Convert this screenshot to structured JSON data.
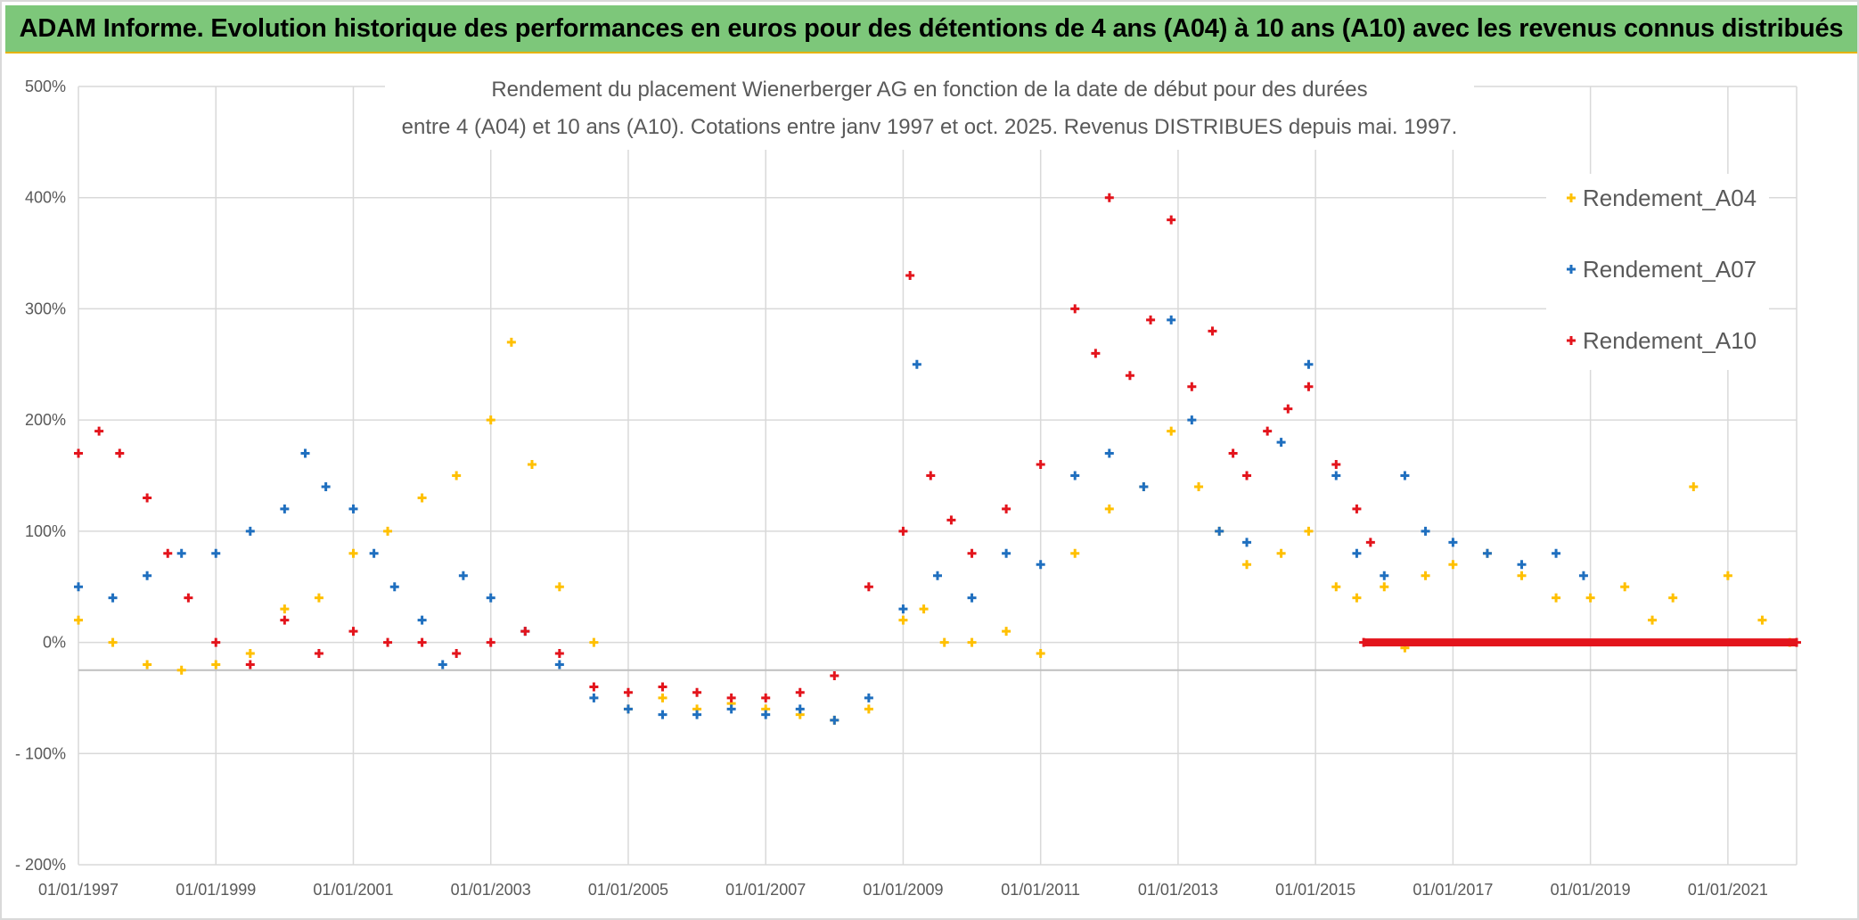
{
  "banner": {
    "text": "ADAM Informe. Evolution historique des performances en euros pour des détentions de 4 ans (A04) à 10 ans (A10) avec les revenus connus distribués"
  },
  "chart_data": {
    "type": "scatter",
    "title_line1": "Rendement du placement Wienerberger AG en fonction de la date de début pour des durées",
    "title_line2": "entre 4 (A04) et 10 ans (A10). Cotations entre janv 1997 et oct. 2025. Revenus DISTRIBUES depuis mai. 1997.",
    "x_unit": "year",
    "xlim": [
      1997.0,
      2022.0
    ],
    "ylim": [
      -200,
      500
    ],
    "y_ticks": [
      500,
      400,
      300,
      200,
      100,
      0,
      -100,
      -200
    ],
    "y_tick_labels": [
      "500%",
      "400%",
      "300%",
      "200%",
      "100%",
      "0%",
      "- 100%",
      "- 200%"
    ],
    "x_ticks": [
      1997,
      1999,
      2001,
      2003,
      2005,
      2007,
      2009,
      2011,
      2013,
      2015,
      2017,
      2019,
      2021
    ],
    "x_tick_labels": [
      "01/01/1997",
      "01/01/1999",
      "01/01/2001",
      "01/01/2003",
      "01/01/2005",
      "01/01/2007",
      "01/01/2009",
      "01/01/2011",
      "01/01/2013",
      "01/01/2015",
      "01/01/2017",
      "01/01/2019",
      "01/01/2021"
    ],
    "reference_line_y": -25,
    "grid": true,
    "legend_position": "right",
    "series": [
      {
        "name": "Rendement_A04",
        "color": "#ffc000",
        "x": [
          1997.0,
          1997.5,
          1998.0,
          1998.5,
          1999.0,
          1999.5,
          2000.0,
          2000.5,
          2001.0,
          2001.5,
          2002.0,
          2002.5,
          2003.0,
          2003.3,
          2003.6,
          2004.0,
          2004.5,
          2005.0,
          2005.5,
          2006.0,
          2006.5,
          2007.0,
          2007.5,
          2008.0,
          2008.5,
          2009.0,
          2009.3,
          2009.6,
          2010.0,
          2010.5,
          2011.0,
          2011.5,
          2012.0,
          2012.5,
          2012.9,
          2013.3,
          2013.6,
          2014.0,
          2014.5,
          2014.9,
          2015.3,
          2015.6,
          2016.0,
          2016.3,
          2016.6,
          2017.0,
          2017.5,
          2018.0,
          2018.5,
          2019.0,
          2019.5,
          2019.9,
          2020.2,
          2020.5,
          2021.0,
          2021.5,
          2021.9
        ],
        "y": [
          20,
          0,
          -20,
          -25,
          -20,
          -10,
          30,
          40,
          80,
          100,
          130,
          150,
          200,
          270,
          160,
          50,
          0,
          -60,
          -50,
          -60,
          -55,
          -60,
          -65,
          -70,
          -60,
          20,
          30,
          0,
          0,
          10,
          -10,
          80,
          120,
          140,
          190,
          140,
          100,
          70,
          80,
          100,
          50,
          40,
          50,
          -5,
          60,
          70,
          80,
          60,
          40,
          40,
          50,
          20,
          40,
          140,
          60,
          20,
          0
        ]
      },
      {
        "name": "Rendement_A07",
        "color": "#1f6fbf",
        "x": [
          1997.0,
          1997.5,
          1998.0,
          1998.5,
          1999.0,
          1999.5,
          2000.0,
          2000.3,
          2000.6,
          2001.0,
          2001.3,
          2001.6,
          2002.0,
          2002.3,
          2002.6,
          2003.0,
          2003.5,
          2004.0,
          2004.5,
          2005.0,
          2005.5,
          2006.0,
          2006.5,
          2007.0,
          2007.5,
          2008.0,
          2008.5,
          2009.0,
          2009.2,
          2009.5,
          2010.0,
          2010.5,
          2011.0,
          2011.5,
          2012.0,
          2012.5,
          2012.9,
          2013.2,
          2013.6,
          2014.0,
          2014.5,
          2014.9,
          2015.3,
          2015.6,
          2016.0,
          2016.3,
          2016.6,
          2017.0,
          2017.5,
          2018.0,
          2018.5,
          2018.9
        ],
        "y": [
          50,
          40,
          60,
          80,
          80,
          100,
          120,
          170,
          140,
          120,
          80,
          50,
          20,
          -20,
          60,
          40,
          10,
          -20,
          -50,
          -60,
          -65,
          -65,
          -60,
          -65,
          -60,
          -70,
          -50,
          30,
          250,
          60,
          40,
          80,
          70,
          150,
          170,
          140,
          290,
          200,
          100,
          90,
          180,
          250,
          150,
          80,
          60,
          150,
          100,
          90,
          80,
          70,
          80,
          60
        ]
      },
      {
        "name": "Rendement_A10",
        "color": "#e3141c",
        "x": [
          1997.0,
          1997.3,
          1997.6,
          1998.0,
          1998.3,
          1998.6,
          1999.0,
          1999.5,
          2000.0,
          2000.5,
          2001.0,
          2001.5,
          2002.0,
          2002.5,
          2003.0,
          2003.5,
          2004.0,
          2004.5,
          2005.0,
          2005.5,
          2006.0,
          2006.5,
          2007.0,
          2007.5,
          2008.0,
          2008.5,
          2009.0,
          2009.1,
          2009.4,
          2009.7,
          2010.0,
          2010.5,
          2011.0,
          2011.5,
          2011.8,
          2012.0,
          2012.3,
          2012.6,
          2012.9,
          2013.2,
          2013.5,
          2013.8,
          2014.0,
          2014.3,
          2014.6,
          2014.9,
          2015.3,
          2015.6,
          2015.8
        ],
        "y": [
          170,
          190,
          170,
          130,
          80,
          40,
          0,
          -20,
          20,
          -10,
          10,
          0,
          0,
          -10,
          0,
          10,
          -10,
          -40,
          -45,
          -40,
          -45,
          -50,
          -50,
          -45,
          -30,
          50,
          100,
          330,
          150,
          110,
          80,
          120,
          160,
          300,
          260,
          400,
          240,
          290,
          380,
          230,
          280,
          170,
          150,
          190,
          210,
          230,
          160,
          120,
          90
        ]
      },
      {
        "name": "",
        "color": "#e3141c",
        "x": [
          2015.7,
          2022.0
        ],
        "y": [
          0,
          0
        ]
      }
    ]
  }
}
